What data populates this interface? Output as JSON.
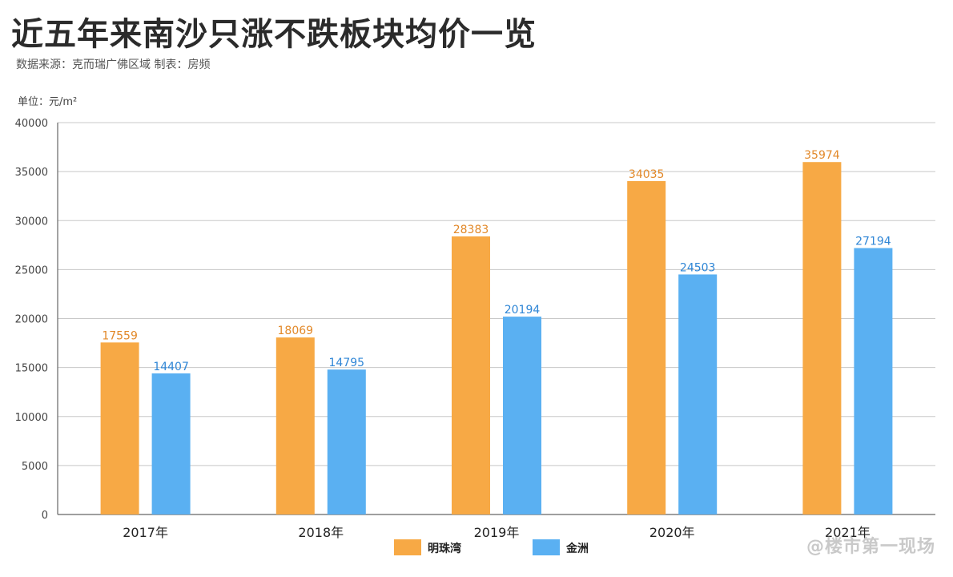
{
  "header": {
    "title": "近五年来南沙只涨不跌板块均价一览",
    "subtitle": "数据来源：克而瑞广佛区域   制表：房频",
    "unit_label": "单位：元/m²"
  },
  "watermark": "@楼市第一现场",
  "colors": {
    "mingzhuwan": "#F7A945",
    "jinzhou": "#5AB0F2",
    "label_mingzhuwan": "#E2892A",
    "label_jinzhou": "#2F86D6",
    "grid": "#C8C8C8"
  },
  "chart_data": {
    "type": "bar",
    "categories": [
      "2017年",
      "2018年",
      "2019年",
      "2020年",
      "2021年"
    ],
    "series": [
      {
        "name": "明珠湾",
        "values": [
          17559,
          18069,
          28383,
          34035,
          35974
        ]
      },
      {
        "name": "金洲",
        "values": [
          14407,
          14795,
          20194,
          24503,
          27194
        ]
      }
    ],
    "title": "近五年来南沙只涨不跌板块均价一览",
    "xlabel": "",
    "ylabel": "单位：元/m²",
    "ylim": [
      0,
      40000
    ],
    "yticks": [
      0,
      5000,
      10000,
      15000,
      20000,
      25000,
      30000,
      35000,
      40000
    ],
    "grid": true,
    "legend": "bottom-center",
    "data_labels": true
  }
}
